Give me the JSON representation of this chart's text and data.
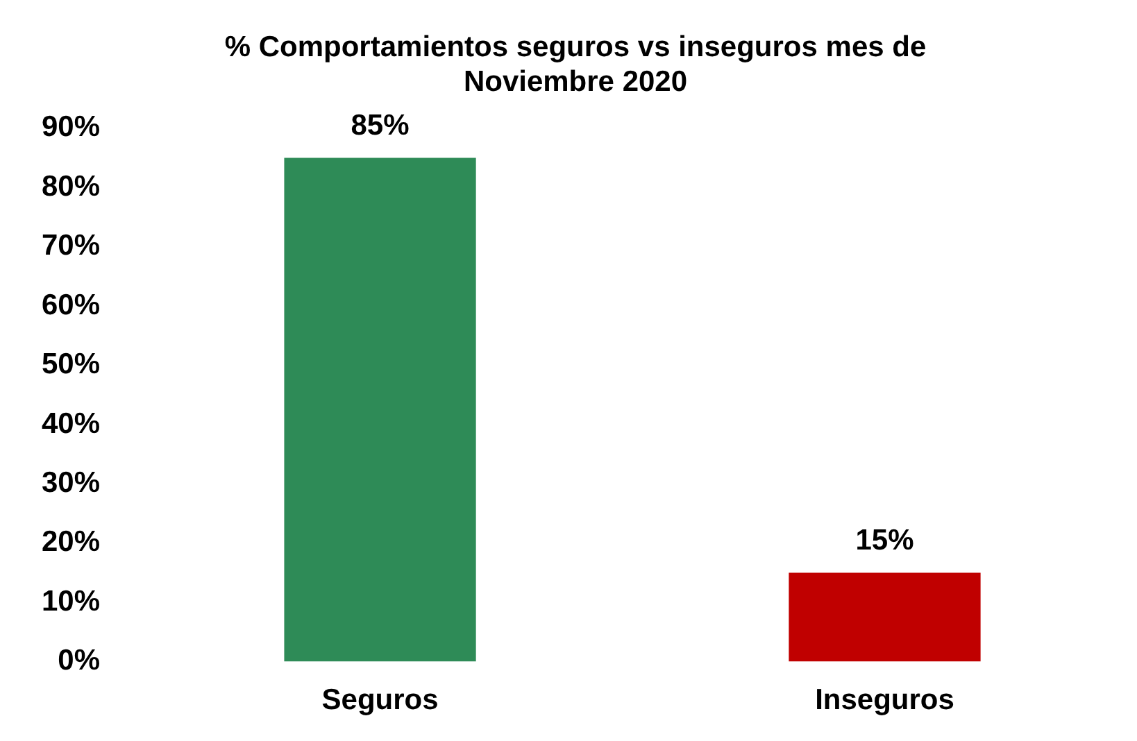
{
  "chart_data": {
    "type": "bar",
    "title": [
      "% Comportamientos seguros vs inseguros mes de",
      "Noviembre 2020"
    ],
    "categories": [
      "Seguros",
      "Inseguros"
    ],
    "values": [
      85,
      15
    ],
    "colors": [
      "#2e8b57",
      "#c00000"
    ],
    "value_labels": [
      "85%",
      "15%"
    ],
    "ylim": [
      0,
      90
    ],
    "yticks": [
      {
        "value": 0,
        "label": "0%"
      },
      {
        "value": 10,
        "label": "10%"
      },
      {
        "value": 20,
        "label": "20%"
      },
      {
        "value": 30,
        "label": "30%"
      },
      {
        "value": 40,
        "label": "40%"
      },
      {
        "value": 50,
        "label": "50%"
      },
      {
        "value": 60,
        "label": "60%"
      },
      {
        "value": 70,
        "label": "70%"
      },
      {
        "value": 80,
        "label": "80%"
      },
      {
        "value": 90,
        "label": "90%"
      }
    ],
    "grid": false,
    "legend": false
  }
}
